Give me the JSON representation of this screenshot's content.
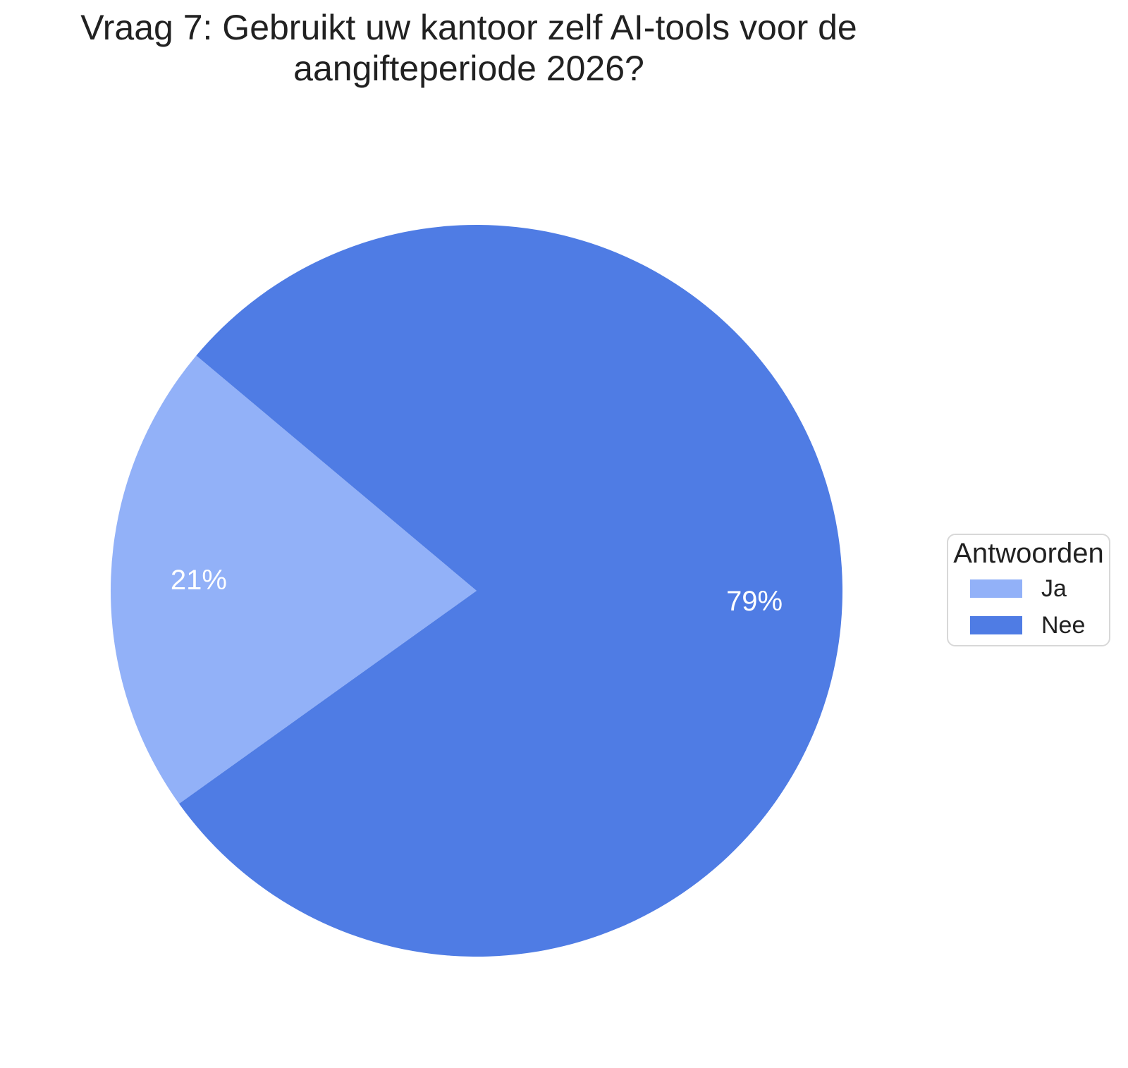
{
  "title_lines": [
    "Vraag 7: Gebruikt uw kantoor zelf AI-tools voor de",
    "aangifteperiode 2026?"
  ],
  "chart_data": {
    "type": "pie",
    "title": "Vraag 7: Gebruikt uw kantoor zelf AI-tools voor de aangifteperiode 2026?",
    "legend_title": "Antwoorden",
    "legend_position": "right",
    "categories": [
      "Ja",
      "Nee"
    ],
    "values": [
      21,
      79
    ],
    "slice_labels": [
      "21%",
      "79%"
    ],
    "colors": [
      "#92b1f8",
      "#4f7ce4"
    ],
    "label_color": "#ffffff",
    "start_angle_deg": 140,
    "direction": "counterclockwise",
    "label_radius_frac": 0.76
  },
  "style_colors": {
    "title_text": "#212121",
    "legend_border": "#d8d8d8",
    "background": "#ffffff"
  }
}
